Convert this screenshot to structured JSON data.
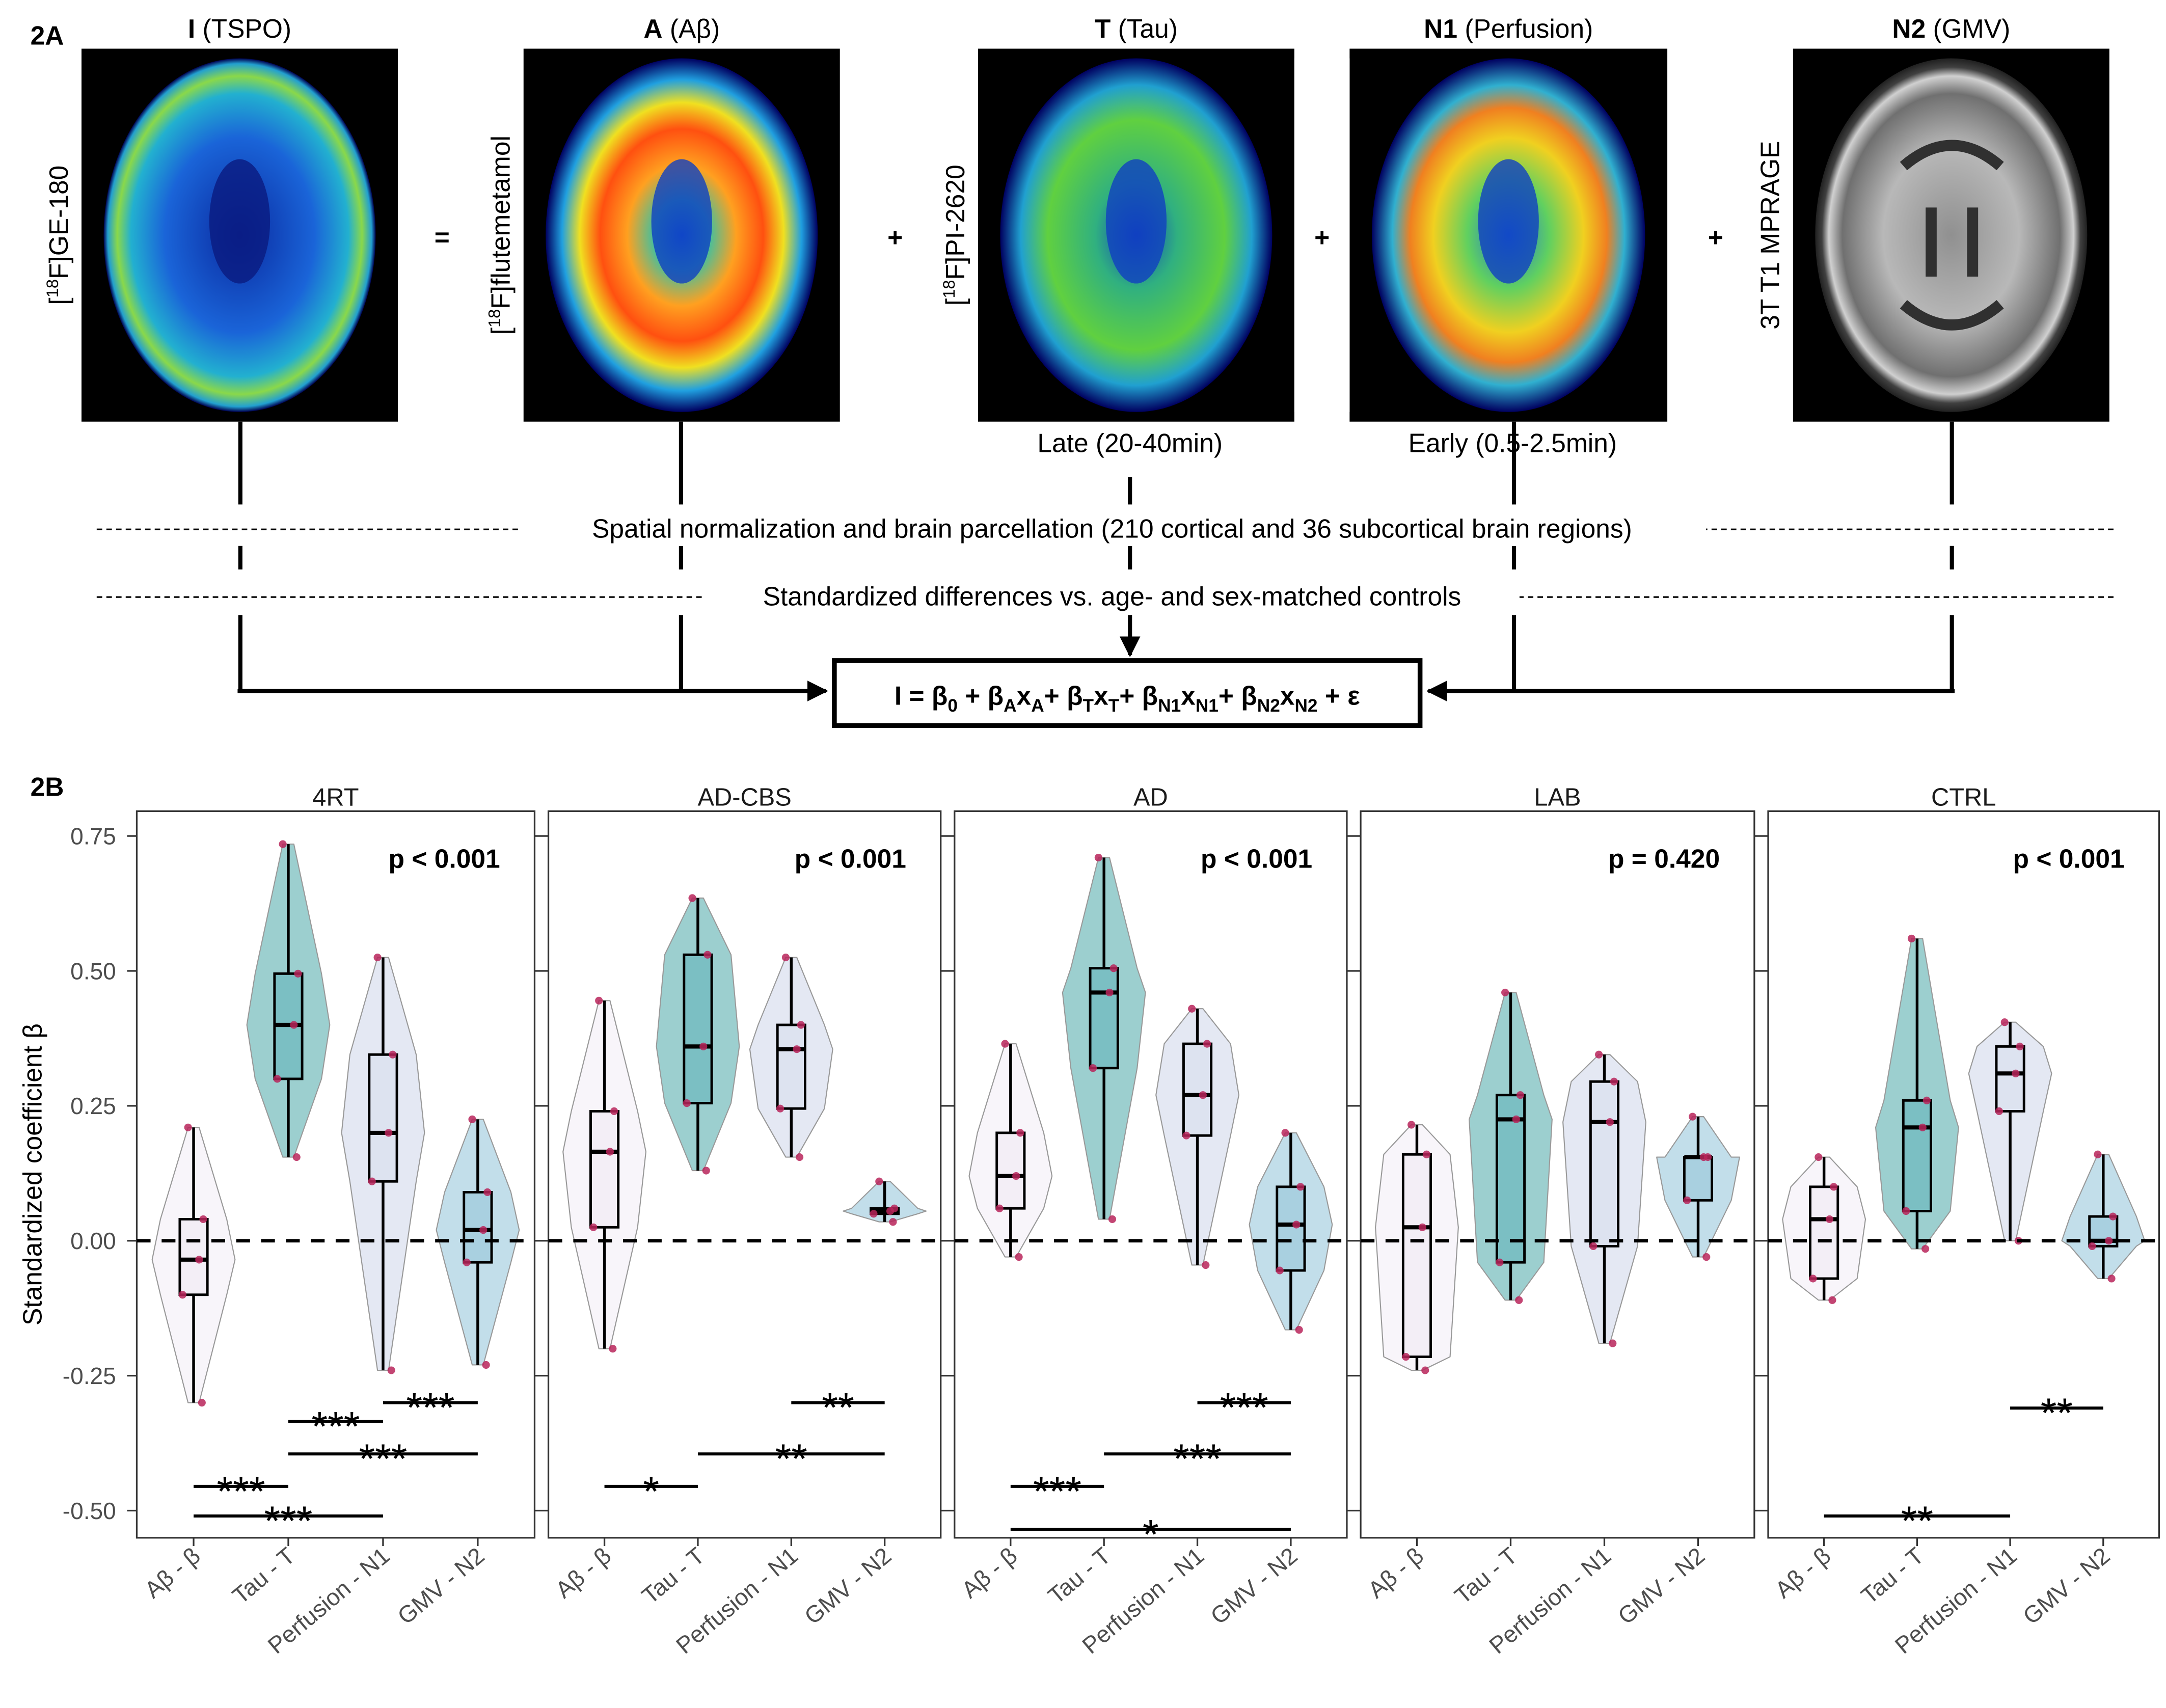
{
  "panel_a": {
    "label": "2A",
    "images": [
      {
        "title_bold": "I",
        "title_rest": " (TSPO)",
        "tracer_pre": "[",
        "tracer_sup": "18",
        "tracer_post": "F]GE-180",
        "kind": "pet-tspo"
      },
      {
        "title_bold": "A",
        "title_rest": " (Aβ)",
        "tracer_pre": "[",
        "tracer_sup": "18",
        "tracer_post": "F]flutemetamol",
        "kind": "pet-amyloid"
      },
      {
        "title_bold": "T",
        "title_rest": " (Tau)",
        "tracer_pre": "[",
        "tracer_sup": "18",
        "tracer_post": "F]PI-2620",
        "kind": "pet-tau",
        "caption": "Late (20-40min)"
      },
      {
        "title_bold": "N1",
        "title_rest": " (Perfusion)",
        "kind": "pet-perfusion",
        "caption": "Early (0.5-2.5min)"
      },
      {
        "title_bold": "N2",
        "title_rest": " (GMV)",
        "tracer_pre": "3T T1 MPRAGE",
        "kind": "mri-t1"
      }
    ],
    "operators": [
      "=",
      "+",
      "+",
      "+"
    ],
    "step1": "Spatial normalization and brain parcellation (210 cortical and 36 subcortical brain regions)",
    "step2": "Standardized differences vs. age- and sex-matched controls",
    "formula": [
      [
        "I = β",
        ""
      ],
      [
        "",
        "0"
      ],
      [
        " + β",
        ""
      ],
      [
        "",
        "A"
      ],
      [
        "x",
        ""
      ],
      [
        "",
        "A"
      ],
      [
        "+ β",
        ""
      ],
      [
        "",
        "T"
      ],
      [
        "x",
        ""
      ],
      [
        "",
        "T"
      ],
      [
        "+ β",
        ""
      ],
      [
        "",
        "N1"
      ],
      [
        "x",
        ""
      ],
      [
        "",
        "N1"
      ],
      [
        "+ β",
        ""
      ],
      [
        "",
        "N2"
      ],
      [
        "x",
        ""
      ],
      [
        "",
        "N2"
      ],
      [
        " + ε",
        ""
      ]
    ]
  },
  "panel_b": {
    "label": "2B"
  },
  "chart_data": {
    "type": "violin-box",
    "ylabel": "Standardized coefficient β",
    "ylim": [
      -0.55,
      0.77
    ],
    "yticks": [
      "0.75",
      "0.50",
      "0.25",
      "0.00",
      "-0.25",
      "-0.50"
    ],
    "yticks_values": [
      0.75,
      0.5,
      0.25,
      0,
      -0.25,
      -0.5
    ],
    "reference_line": 0,
    "categories": [
      "Aβ - β",
      "Tau - T",
      "Perfusion - N1",
      "GMV - N2"
    ],
    "category_colors": {
      "violin": [
        "#f8f5fa",
        "#9ccfcf",
        "#e4e8f3",
        "#c2deea"
      ],
      "box": [
        "#f3eef6",
        "#7bbfc3",
        "#dde3f0",
        "#a9d0e0"
      ]
    },
    "point_color": "#b8245a",
    "facets": [
      {
        "name": "4RT",
        "p_label": "p < 0.001",
        "stats": [
          [
            -0.3,
            -0.1,
            -0.035,
            0.04,
            0.21
          ],
          [
            0.155,
            0.3,
            0.4,
            0.495,
            0.735
          ],
          [
            -0.24,
            0.11,
            0.2,
            0.345,
            0.525
          ],
          [
            -0.23,
            -0.04,
            0.02,
            0.09,
            0.225
          ]
        ],
        "comparisons": [
          {
            "from": 3,
            "to": 4,
            "y": -0.3,
            "label": "***"
          },
          {
            "from": 2,
            "to": 3,
            "y": -0.335,
            "label": "***"
          },
          {
            "from": 2,
            "to": 4,
            "y": -0.395,
            "label": "***"
          },
          {
            "from": 1,
            "to": 2,
            "y": -0.455,
            "label": "***"
          },
          {
            "from": 1,
            "to": 3,
            "y": -0.51,
            "label": "***"
          }
        ]
      },
      {
        "name": "AD-CBS",
        "p_label": "p < 0.001",
        "stats": [
          [
            -0.2,
            0.025,
            0.165,
            0.24,
            0.445
          ],
          [
            0.13,
            0.255,
            0.36,
            0.53,
            0.635
          ],
          [
            0.155,
            0.245,
            0.355,
            0.4,
            0.525
          ],
          [
            0.035,
            0.05,
            0.055,
            0.06,
            0.11
          ]
        ],
        "comparisons": [
          {
            "from": 3,
            "to": 4,
            "y": -0.3,
            "label": "**"
          },
          {
            "from": 2,
            "to": 4,
            "y": -0.395,
            "label": "**"
          },
          {
            "from": 1,
            "to": 2,
            "y": -0.455,
            "label": "*"
          }
        ]
      },
      {
        "name": "AD",
        "p_label": "p < 0.001",
        "stats": [
          [
            -0.03,
            0.06,
            0.12,
            0.2,
            0.365
          ],
          [
            0.04,
            0.32,
            0.46,
            0.505,
            0.71
          ],
          [
            -0.045,
            0.195,
            0.27,
            0.365,
            0.43
          ],
          [
            -0.165,
            -0.055,
            0.03,
            0.1,
            0.2
          ]
        ],
        "comparisons": [
          {
            "from": 3,
            "to": 4,
            "y": -0.3,
            "label": "***"
          },
          {
            "from": 2,
            "to": 4,
            "y": -0.395,
            "label": "***"
          },
          {
            "from": 1,
            "to": 2,
            "y": -0.455,
            "label": "***"
          },
          {
            "from": 1,
            "to": 4,
            "y": -0.535,
            "label": "*"
          }
        ]
      },
      {
        "name": "LAB",
        "p_label": "p = 0.420",
        "stats": [
          [
            -0.24,
            -0.215,
            0.025,
            0.16,
            0.215
          ],
          [
            -0.11,
            -0.04,
            0.225,
            0.27,
            0.46
          ],
          [
            -0.19,
            -0.01,
            0.22,
            0.295,
            0.345
          ],
          [
            -0.03,
            0.075,
            0.155,
            0.155,
            0.23
          ]
        ],
        "comparisons": []
      },
      {
        "name": "CTRL",
        "p_label": "p < 0.001",
        "stats": [
          [
            -0.11,
            -0.07,
            0.04,
            0.1,
            0.155
          ],
          [
            -0.015,
            0.055,
            0.21,
            0.26,
            0.56
          ],
          [
            0.0,
            0.24,
            0.31,
            0.36,
            0.405
          ],
          [
            -0.07,
            -0.01,
            0.0,
            0.045,
            0.16
          ]
        ],
        "comparisons": [
          {
            "from": 3,
            "to": 4,
            "y": -0.31,
            "label": "**"
          },
          {
            "from": 1,
            "to": 3,
            "y": -0.51,
            "label": "**"
          }
        ]
      }
    ]
  }
}
